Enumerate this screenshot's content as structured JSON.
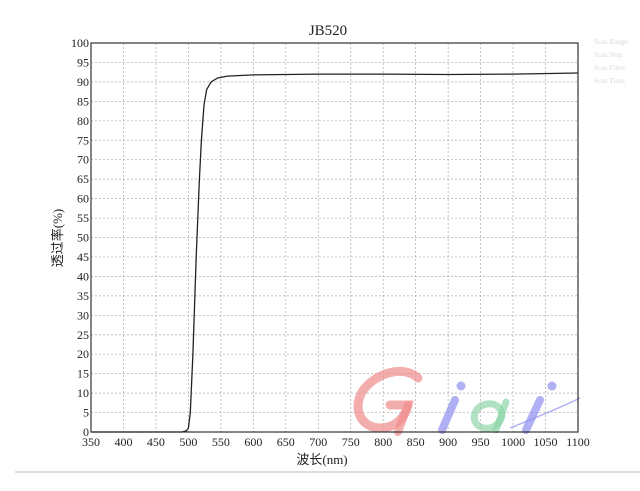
{
  "chart_data": {
    "type": "line",
    "title": "JB520",
    "xlabel": "波长(nm)",
    "ylabel": "透过率(%)",
    "xlim": [
      350,
      1100
    ],
    "ylim": [
      0,
      100
    ],
    "xticks": [
      350,
      400,
      450,
      500,
      550,
      600,
      650,
      700,
      750,
      800,
      850,
      900,
      950,
      1000,
      1050,
      1100
    ],
    "yticks": [
      0,
      5,
      10,
      15,
      20,
      25,
      30,
      35,
      40,
      45,
      50,
      55,
      60,
      65,
      70,
      75,
      80,
      85,
      90,
      95,
      100
    ],
    "grid": true,
    "line_color": "#222222",
    "series": [
      {
        "x": [
          350,
          450,
          490,
          497,
          500,
          503,
          507,
          512,
          517,
          520,
          524,
          528,
          535,
          545,
          560,
          600,
          700,
          800,
          900,
          1000,
          1100
        ],
        "y": [
          0,
          0,
          0,
          0.3,
          1,
          5,
          20,
          45,
          65,
          75,
          84,
          88,
          90,
          91,
          91.5,
          91.8,
          92,
          92,
          91.9,
          92,
          92.3
        ]
      }
    ]
  },
  "side_labels": [
    "Scan Range:",
    "Scan Step:",
    "Scan Filter:",
    "Scan Time:"
  ],
  "watermark": {
    "text": "Giai",
    "colors": [
      "#f08a8a",
      "#8f8ff0",
      "#8fd6a8",
      "#8f8ff0"
    ]
  }
}
